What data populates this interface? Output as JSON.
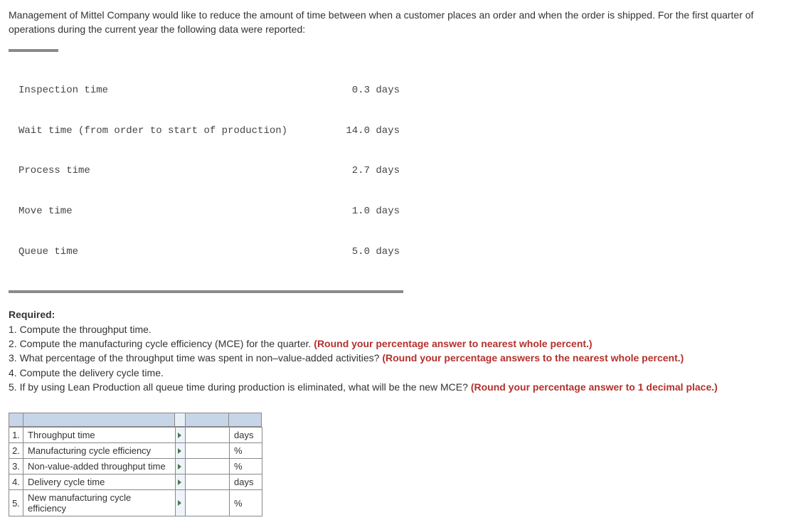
{
  "intro": "Management of Mittel Company would like to reduce the amount of time between when a customer places an order and when the order is shipped. For the first quarter of operations during the current year the following data were reported:",
  "dataTable": {
    "rows": [
      {
        "label": "Inspection time",
        "value": "0.3 days"
      },
      {
        "label": "Wait time (from order to start of production)",
        "value": "14.0 days"
      },
      {
        "label": "Process time",
        "value": "2.7 days"
      },
      {
        "label": "Move time",
        "value": "1.0 days"
      },
      {
        "label": "Queue time",
        "value": "5.0 days"
      }
    ]
  },
  "required": {
    "heading": "Required:",
    "q1": "1. Compute the throughput time.",
    "q2_a": "2. Compute the manufacturing cycle efficiency (MCE) for the quarter. ",
    "q2_b": "(Round your percentage answer to nearest whole percent.)",
    "q3_a": "3. What percentage of the throughput time was spent in non–value-added activities? ",
    "q3_b": "(Round your percentage answers to the nearest whole percent.)",
    "q4": "4. Compute the delivery cycle time.",
    "q5_a": "5. If by using Lean Production all queue time during production is eliminated, what will be the new MCE? ",
    "q5_b": "(Round your percentage answer to 1 decimal place.)"
  },
  "answers": {
    "rows": [
      {
        "num": "1.",
        "label": "Throughput time",
        "unit": "days"
      },
      {
        "num": "2.",
        "label": "Manufacturing cycle efficiency",
        "unit": "%"
      },
      {
        "num": "3.",
        "label": "Non-value-added throughput time",
        "unit": "%"
      },
      {
        "num": "4.",
        "label": "Delivery cycle time",
        "unit": "days"
      },
      {
        "num": "5.",
        "label": "New manufacturing cycle efficiency",
        "unit": "%"
      }
    ]
  }
}
